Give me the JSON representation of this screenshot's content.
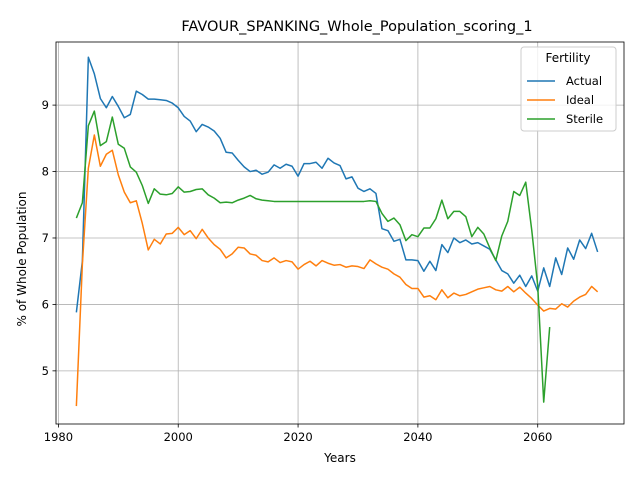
{
  "chart_data": {
    "type": "line",
    "title": "FAVOUR_SPANKING_Whole_Population_scoring_1",
    "xlabel": "Years",
    "ylabel": "% of Whole Population",
    "xlim": [
      1979.6,
      2074.4
    ],
    "ylim": [
      4.2,
      9.95
    ],
    "xticks": [
      1980,
      2000,
      2020,
      2040,
      2060
    ],
    "yticks": [
      5,
      6,
      7,
      8,
      9
    ],
    "grid": true,
    "legend": {
      "title": "Fertility",
      "placement": "top-right"
    },
    "x": [
      1983,
      1984,
      1985,
      1986,
      1987,
      1988,
      1989,
      1990,
      1991,
      1992,
      1993,
      1994,
      1995,
      1996,
      1997,
      1998,
      1999,
      2000,
      2001,
      2002,
      2003,
      2004,
      2005,
      2006,
      2007,
      2008,
      2009,
      2010,
      2011,
      2012,
      2013,
      2014,
      2015,
      2016,
      2017,
      2018,
      2019,
      2020,
      2021,
      2022,
      2023,
      2024,
      2025,
      2026,
      2027,
      2028,
      2029,
      2030,
      2031,
      2032,
      2033,
      2034,
      2035,
      2036,
      2037,
      2038,
      2039,
      2040,
      2041,
      2042,
      2043,
      2044,
      2045,
      2046,
      2047,
      2048,
      2049,
      2050,
      2051,
      2052,
      2053,
      2054,
      2055,
      2056,
      2057,
      2058,
      2059,
      2060,
      2061,
      2062,
      2063,
      2064,
      2065,
      2066,
      2067,
      2068,
      2069,
      2070
    ],
    "series": [
      {
        "name": "Actual",
        "color": "#1f77b4",
        "values": [
          5.88,
          6.65,
          9.72,
          9.47,
          9.1,
          8.96,
          9.13,
          8.98,
          8.81,
          8.86,
          9.21,
          9.16,
          9.09,
          9.09,
          9.08,
          9.07,
          9.03,
          8.96,
          8.83,
          8.76,
          8.6,
          8.71,
          8.67,
          8.61,
          8.5,
          8.29,
          8.28,
          8.17,
          8.07,
          8.0,
          8.02,
          7.96,
          7.99,
          8.1,
          8.05,
          8.11,
          8.08,
          7.93,
          8.12,
          8.12,
          8.14,
          8.05,
          8.2,
          8.13,
          8.09,
          7.89,
          7.92,
          7.75,
          7.7,
          7.74,
          7.67,
          7.14,
          7.11,
          6.95,
          6.98,
          6.67,
          6.67,
          6.66,
          6.5,
          6.65,
          6.51,
          6.9,
          6.78,
          7.0,
          6.93,
          6.97,
          6.91,
          6.93,
          6.88,
          6.83,
          6.67,
          6.51,
          6.46,
          6.32,
          6.44,
          6.27,
          6.43,
          6.2,
          6.55,
          6.27,
          6.7,
          6.45,
          6.85,
          6.68,
          6.97,
          6.84,
          7.07,
          6.79
        ]
      },
      {
        "name": "Ideal",
        "color": "#ff7f0e",
        "values": [
          4.47,
          6.6,
          8.05,
          8.55,
          8.08,
          8.26,
          8.32,
          7.95,
          7.69,
          7.53,
          7.56,
          7.22,
          6.82,
          6.98,
          6.91,
          7.06,
          7.07,
          7.16,
          7.05,
          7.11,
          6.99,
          7.13,
          7.0,
          6.9,
          6.83,
          6.7,
          6.76,
          6.86,
          6.85,
          6.76,
          6.74,
          6.66,
          6.64,
          6.7,
          6.63,
          6.66,
          6.64,
          6.53,
          6.6,
          6.65,
          6.58,
          6.66,
          6.62,
          6.59,
          6.6,
          6.56,
          6.58,
          6.57,
          6.54,
          6.67,
          6.61,
          6.56,
          6.53,
          6.46,
          6.41,
          6.3,
          6.24,
          6.24,
          6.11,
          6.13,
          6.07,
          6.22,
          6.1,
          6.17,
          6.13,
          6.15,
          6.19,
          6.23,
          6.25,
          6.27,
          6.22,
          6.2,
          6.27,
          6.19,
          6.26,
          6.17,
          6.09,
          5.99,
          5.9,
          5.94,
          5.93,
          6.01,
          5.96,
          6.05,
          6.11,
          6.15,
          6.27,
          6.19
        ]
      },
      {
        "name": "Sterile",
        "color": "#2ca02c",
        "values": [
          7.3,
          7.53,
          8.69,
          8.91,
          8.39,
          8.45,
          8.82,
          8.41,
          8.35,
          8.07,
          7.99,
          7.79,
          7.52,
          7.74,
          7.66,
          7.65,
          7.67,
          7.77,
          7.69,
          7.7,
          7.73,
          7.74,
          7.65,
          7.6,
          7.53,
          7.54,
          7.53,
          7.57,
          7.6,
          7.64,
          7.59,
          7.57,
          7.56,
          7.55,
          7.55,
          7.55,
          7.55,
          7.55,
          7.55,
          7.55,
          7.55,
          7.55,
          7.55,
          7.55,
          7.55,
          7.55,
          7.55,
          7.55,
          7.55,
          7.56,
          7.55,
          7.37,
          7.25,
          7.3,
          7.2,
          6.96,
          7.05,
          7.02,
          7.15,
          7.15,
          7.29,
          7.57,
          7.29,
          7.4,
          7.4,
          7.32,
          7.02,
          7.16,
          7.06,
          6.85,
          6.66,
          7.03,
          7.25,
          7.7,
          7.64,
          7.84,
          7.12,
          6.28,
          4.53,
          5.66,
          null,
          null,
          null,
          null,
          null,
          null,
          null,
          null
        ]
      }
    ]
  }
}
